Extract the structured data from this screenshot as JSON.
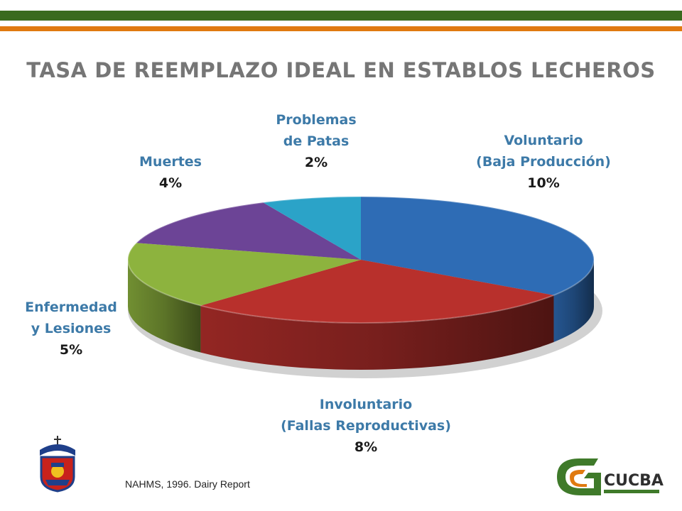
{
  "header": {
    "colors": {
      "green_bar": "#3a6a1e",
      "orange_bar": "#e07a10"
    }
  },
  "title": "TASA DE REEMPLAZO IDEAL EN ESTABLOS LECHEROS",
  "chart_data": {
    "type": "pie",
    "title": "TASA DE REEMPLAZO IDEAL EN ESTABLOS LECHEROS",
    "style": "3d-exploded-none",
    "slices": [
      {
        "label_lines": [
          "Voluntario",
          "(Baja Producción)"
        ],
        "value_label": "10%",
        "value": 10,
        "color": "#2e6cb5"
      },
      {
        "label_lines": [
          "Involuntario",
          "(Fallas Reproductivas)"
        ],
        "value_label": "8%",
        "value": 8,
        "color": "#b8302c"
      },
      {
        "label_lines": [
          "Enfermedad",
          "y Lesiones"
        ],
        "value_label": "5%",
        "value": 5,
        "color": "#8db33e"
      },
      {
        "label_lines": [
          "Muertes"
        ],
        "value_label": "4%",
        "value": 4,
        "color": "#6c4496"
      },
      {
        "label_lines": [
          "Problemas",
          "de Patas"
        ],
        "value_label": "2%",
        "value": 2,
        "color": "#2ba3c8"
      }
    ]
  },
  "footer": {
    "source": "NAHMS, 1996. Dairy Report",
    "logo_left": "Universidad de Guadalajara",
    "logo_right": "CUCBA"
  }
}
